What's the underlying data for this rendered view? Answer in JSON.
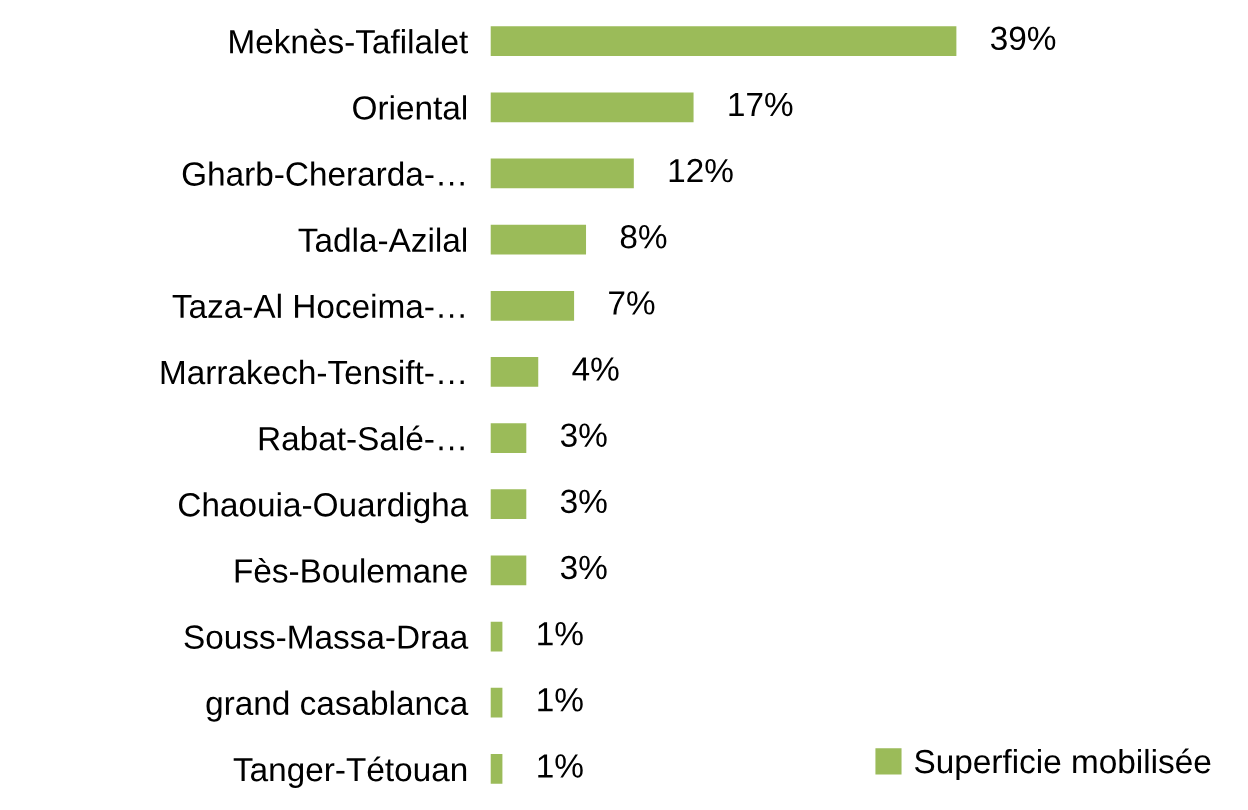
{
  "chart_data": {
    "type": "bar",
    "orientation": "horizontal",
    "categories": [
      "Meknès-Tafilalet",
      "Oriental",
      "Gharb-Cherarda-…",
      "Tadla-Azilal",
      "Taza-Al Hoceima-…",
      "Marrakech-Tensift-…",
      "Rabat-Salé-…",
      "Chaouia-Ouardigha",
      "Fès-Boulemane",
      "Souss-Massa-Draa",
      "grand casablanca",
      "Tanger-Tétouan"
    ],
    "series": [
      {
        "name": "Superficie mobilisée",
        "color": "#9bbb59",
        "values": [
          39,
          17,
          12,
          8,
          7,
          4,
          3,
          3,
          3,
          1,
          1,
          1
        ],
        "value_labels": [
          "39%",
          "17%",
          "12%",
          "8%",
          "7%",
          "4%",
          "3%",
          "3%",
          "3%",
          "1%",
          "1%",
          "1%"
        ]
      }
    ],
    "legend": "bottom right",
    "grid": false
  }
}
